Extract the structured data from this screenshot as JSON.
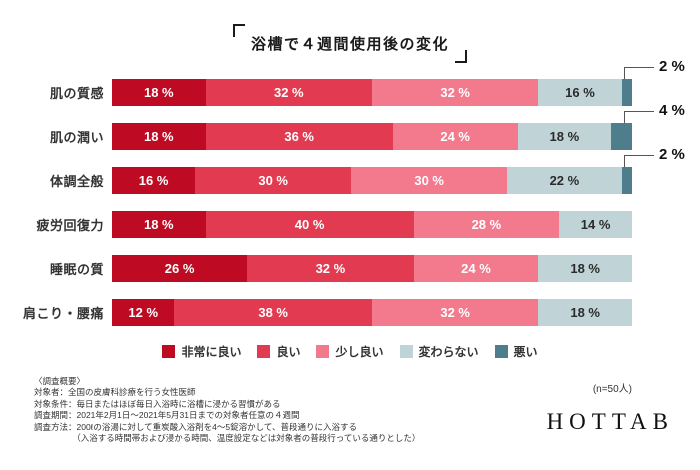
{
  "title": "浴槽で４週間使用後の変化",
  "n_label": "(n=50人)",
  "logo_text": "HOTTAB",
  "legend": [
    {
      "label": "非常に良い",
      "color": "#bf0a23"
    },
    {
      "label": "良い",
      "color": "#e23a50"
    },
    {
      "label": "少し良い",
      "color": "#f3798d"
    },
    {
      "label": "変わらない",
      "color": "#c0d4d8"
    },
    {
      "label": "悪い",
      "color": "#4e7e8b"
    }
  ],
  "chart_data": {
    "type": "bar",
    "orientation": "horizontal",
    "stacked": true,
    "unit": "%",
    "xlim": [
      0,
      100
    ],
    "legend_position": "bottom",
    "categories": [
      "肌の質感",
      "肌の潤い",
      "体調全般",
      "疲労回復力",
      "睡眠の質",
      "肩こり・腰痛"
    ],
    "series": [
      {
        "name": "非常に良い",
        "values": [
          18,
          18,
          16,
          18,
          26,
          12
        ]
      },
      {
        "name": "良い",
        "values": [
          32,
          36,
          30,
          40,
          32,
          38
        ]
      },
      {
        "name": "少し良い",
        "values": [
          32,
          24,
          30,
          28,
          24,
          32
        ]
      },
      {
        "name": "変わらない",
        "values": [
          16,
          18,
          22,
          14,
          18,
          18
        ]
      },
      {
        "name": "悪い",
        "values": [
          2,
          4,
          2,
          0,
          0,
          0
        ]
      }
    ],
    "callout_labels": [
      "2 %",
      "4 %",
      "2 %"
    ]
  },
  "survey": {
    "lines": [
      "〈調査概要〉",
      "対象者：全国の皮膚科診療を行う女性医師",
      "対象条件：毎日またはほぼ毎日入浴時に浴槽に浸かる習慣がある",
      "調査期間：2021年2月1日～2021年5月31日までの対象者任意の４週間",
      "調査方法：200ℓの浴湯に対して重炭酸入浴剤を4～5錠溶かして、普段通りに入浴する",
      "　　　　　（入浴する時間帯および浸かる時間、温度設定などは対象者の普段行っている通りとした）"
    ]
  }
}
